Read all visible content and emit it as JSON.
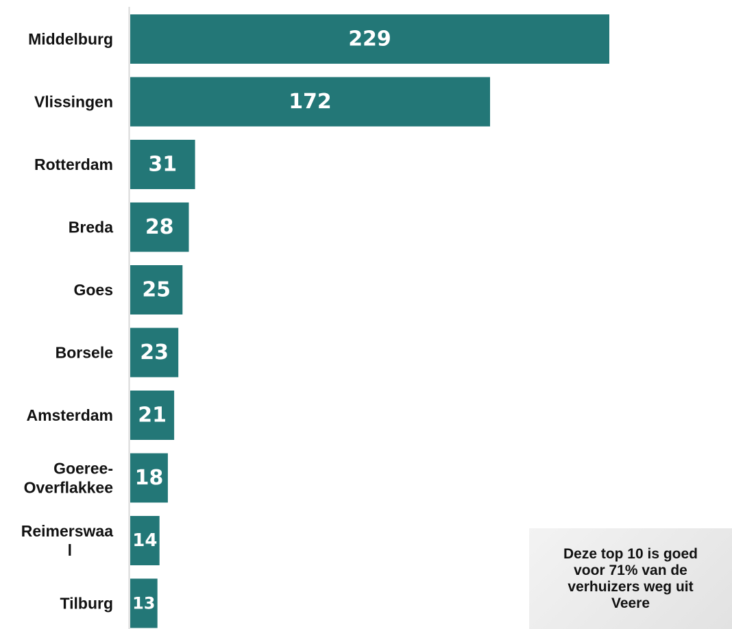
{
  "chart_data": {
    "type": "bar",
    "orientation": "horizontal",
    "categories": [
      "Middelburg",
      "Vlissingen",
      "Rotterdam",
      "Breda",
      "Goes",
      "Borsele",
      "Amsterdam",
      "Goeree-Overflakkee",
      "Reimerswaal",
      "Tilburg"
    ],
    "category_lines": [
      [
        "Middelburg"
      ],
      [
        "Vlissingen"
      ],
      [
        "Rotterdam"
      ],
      [
        "Breda"
      ],
      [
        "Goes"
      ],
      [
        "Borsele"
      ],
      [
        "Amsterdam"
      ],
      [
        "Goeree-",
        "Overflakkee"
      ],
      [
        "Reimerswaa",
        "l"
      ],
      [
        "Tilburg"
      ]
    ],
    "values": [
      229,
      172,
      31,
      28,
      25,
      23,
      21,
      18,
      14,
      13
    ],
    "data_labels": [
      "229",
      "172",
      "31",
      "28",
      "25",
      "23",
      "21",
      "18",
      "14",
      "13"
    ],
    "title": "",
    "xlabel": "",
    "ylabel": "",
    "xlim": [
      0,
      229
    ],
    "grid": false,
    "bar_color": "#237777",
    "label_color": "#ffffff"
  },
  "callout": {
    "text": "Deze top 10 is goed voor 71% van de verhuizers weg uit Veere"
  }
}
